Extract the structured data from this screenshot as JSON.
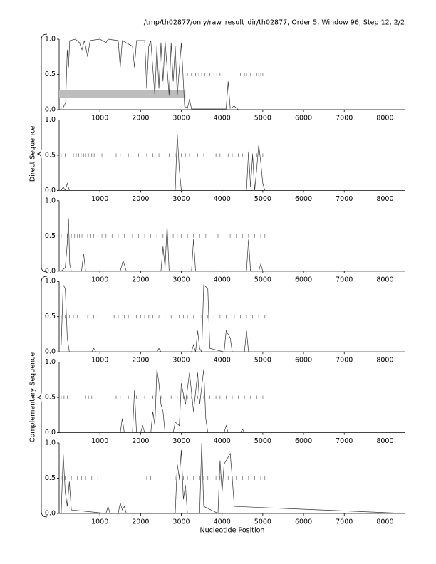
{
  "page": {
    "header": "/tmp/th02877/only/raw_result_dir/th02877, Order 5, Window 96, Step 12, 2/2",
    "direct_label": "Direct Sequence",
    "complementary_label": "Complementary Sequence",
    "xlabel": "Nucleotide Position"
  },
  "chart_data": [
    {
      "type": "line",
      "xlim": [
        0,
        8500
      ],
      "ylim": [
        0,
        1
      ],
      "xticks": [
        1000,
        2000,
        3000,
        4000,
        5000,
        6000,
        7000,
        8000
      ],
      "yticks": [
        {
          "value": 0,
          "label": "0.0"
        },
        {
          "value": 0.5,
          "label": "0.5"
        },
        {
          "value": 1,
          "label": "1.0"
        }
      ],
      "x": [
        50,
        100,
        160,
        200,
        230,
        260,
        400,
        500,
        560,
        620,
        700,
        760,
        1000,
        1150,
        1200,
        1450,
        1500,
        1550,
        1800,
        1850,
        1900,
        2100,
        2150,
        2200,
        2250,
        2350,
        2400,
        2450,
        2500,
        2550,
        2600,
        2700,
        2750,
        2800,
        2850,
        2900,
        3000,
        3080,
        3150,
        3200,
        3250,
        4100,
        4150,
        4200,
        4300,
        4400,
        8500
      ],
      "series": [
        {
          "color": "#333333",
          "values": [
            0.02,
            0.03,
            0.1,
            0.85,
            0.6,
            0.98,
            1,
            0.95,
            0.85,
            0.98,
            0.75,
            0.98,
            1,
            0.95,
            1,
            0.98,
            0.6,
            0.98,
            0.9,
            0.6,
            0.98,
            0.98,
            0.3,
            0.9,
            0.98,
            0.2,
            0.9,
            0.3,
            0.95,
            0.4,
            0.98,
            0.2,
            0.95,
            0.4,
            0.9,
            0.2,
            0.95,
            0.05,
            0.02,
            0.15,
            0.01,
            0.01,
            0.4,
            0.02,
            0.05,
            0,
            0
          ]
        }
      ],
      "orfs": [
        3150,
        3250,
        3350,
        3430,
        3500,
        3580,
        3700,
        3800,
        3870,
        3950,
        4050,
        4450,
        4550,
        4600,
        4700,
        4780,
        4850,
        4900,
        4950,
        5000
      ],
      "region": {
        "x": [
          0,
          3100
        ],
        "y": [
          0.17,
          0.28
        ]
      }
    },
    {
      "type": "line",
      "xlim": [
        0,
        8500
      ],
      "ylim": [
        0,
        1
      ],
      "xticks": [
        1000,
        2000,
        3000,
        4000,
        5000,
        6000,
        7000,
        8000
      ],
      "yticks": [
        {
          "value": 0,
          "label": "0.0"
        },
        {
          "value": 0.5,
          "label": "0.5"
        },
        {
          "value": 1,
          "label": "1.0"
        }
      ],
      "x": [
        50,
        100,
        150,
        200,
        250,
        2850,
        2900,
        2950,
        3000,
        4600,
        4650,
        4700,
        4750,
        4800,
        4850,
        4900,
        4950,
        5000,
        5050,
        8500
      ],
      "series": [
        {
          "color": "#333333",
          "values": [
            0,
            0.05,
            0,
            0.1,
            0,
            0,
            0.8,
            0.3,
            0,
            0,
            0.55,
            0.05,
            0.5,
            0,
            0.3,
            0.65,
            0.4,
            0.1,
            0,
            0
          ]
        }
      ],
      "orfs": [
        50,
        150,
        350,
        420,
        480,
        540,
        600,
        650,
        720,
        800,
        860,
        950,
        1050,
        1250,
        1400,
        1500,
        1700,
        1950,
        2150,
        2300,
        2450,
        2600,
        2700,
        2850,
        3000,
        3100,
        3200,
        3400,
        3550,
        3850,
        3950,
        4050,
        4150,
        4250,
        4400,
        4500,
        4650,
        4750,
        4850,
        5000
      ]
    },
    {
      "type": "line",
      "xlim": [
        0,
        8500
      ],
      "ylim": [
        0,
        1
      ],
      "xticks": [
        1000,
        2000,
        3000,
        4000,
        5000,
        6000,
        7000,
        8000
      ],
      "yticks": [
        {
          "value": 0,
          "label": "0.0"
        },
        {
          "value": 0.5,
          "label": "0.5"
        },
        {
          "value": 1,
          "label": "1.0"
        }
      ],
      "x": [
        50,
        150,
        200,
        230,
        260,
        300,
        550,
        600,
        650,
        1500,
        1570,
        1650,
        2500,
        2550,
        2600,
        2650,
        2700,
        3250,
        3300,
        3350,
        4600,
        4650,
        4700,
        4900,
        4950,
        5000,
        8500
      ],
      "series": [
        {
          "color": "#333333",
          "values": [
            0,
            0.05,
            0.4,
            0.75,
            0.1,
            0,
            0,
            0.25,
            0,
            0,
            0.15,
            0,
            0,
            0.35,
            0.05,
            0.65,
            0,
            0,
            0.45,
            0,
            0,
            0.45,
            0,
            0,
            0.1,
            0,
            0
          ]
        }
      ],
      "orfs": [
        50,
        200,
        300,
        380,
        450,
        500,
        560,
        640,
        700,
        780,
        850,
        950,
        1050,
        1150,
        1300,
        1450,
        1600,
        1800,
        1950,
        2100,
        2250,
        2400,
        2550,
        2650,
        2800,
        2900,
        3000,
        3150,
        3300,
        3450,
        3600,
        3750,
        3900,
        4050,
        4200,
        4350,
        4500,
        4650,
        4800,
        4950,
        5050
      ]
    },
    {
      "type": "line",
      "xlim": [
        0,
        8500
      ],
      "ylim": [
        0,
        1
      ],
      "xticks": [
        1000,
        2000,
        3000,
        4000,
        5000,
        6000,
        7000,
        8000
      ],
      "yticks": [
        {
          "value": 0,
          "label": "0.0"
        },
        {
          "value": 0.5,
          "label": "0.5"
        },
        {
          "value": 1,
          "label": "1.0"
        }
      ],
      "x": [
        50,
        100,
        150,
        200,
        250,
        800,
        850,
        900,
        2400,
        2450,
        2500,
        3250,
        3300,
        3350,
        3400,
        3450,
        3500,
        3550,
        3650,
        3700,
        4050,
        4100,
        4200,
        4250,
        4550,
        4600,
        4650,
        8500
      ],
      "series": [
        {
          "color": "#333333",
          "values": [
            0.1,
            0.95,
            0.9,
            0.2,
            0,
            0,
            0.05,
            0,
            0,
            0.05,
            0,
            0,
            0.1,
            0,
            0.3,
            0.05,
            0,
            0.95,
            0.9,
            0.05,
            0,
            0.3,
            0.2,
            0,
            0,
            0.3,
            0,
            0
          ]
        }
      ],
      "orfs": [
        50,
        150,
        250,
        350,
        450,
        700,
        850,
        950,
        1200,
        1350,
        1450,
        1600,
        1700,
        1900,
        2000,
        2100,
        2200,
        2300,
        2450,
        2600,
        2750,
        2950,
        3050,
        3150,
        3300,
        3500,
        3650,
        3800,
        3950,
        4100,
        4300,
        4450,
        4600,
        4750,
        4900,
        5050
      ]
    },
    {
      "type": "line",
      "xlim": [
        0,
        8500
      ],
      "ylim": [
        0,
        1
      ],
      "xticks": [
        1000,
        2000,
        3000,
        4000,
        5000,
        6000,
        7000,
        8000
      ],
      "yticks": [
        {
          "value": 0,
          "label": "0.0"
        },
        {
          "value": 0.5,
          "label": "0.5"
        },
        {
          "value": 1,
          "label": "1.0"
        }
      ],
      "x": [
        50,
        1500,
        1550,
        1600,
        1800,
        1850,
        1900,
        2000,
        2050,
        2100,
        2250,
        2300,
        2350,
        2400,
        2450,
        2500,
        2550,
        2600,
        2800,
        2850,
        2950,
        3000,
        3100,
        3200,
        3300,
        3400,
        3450,
        3550,
        3600,
        3650,
        4050,
        4100,
        4150,
        4450,
        4500,
        4550,
        8500
      ],
      "series": [
        {
          "color": "#333333",
          "values": [
            0,
            0,
            0.2,
            0,
            0,
            0.6,
            0,
            0,
            0.1,
            0,
            0,
            0.3,
            0.1,
            0.9,
            0.7,
            0.4,
            0.3,
            0,
            0,
            0.15,
            0.1,
            0.7,
            0.4,
            0.85,
            0.3,
            0.85,
            0.4,
            0.9,
            0.2,
            0,
            0,
            0.1,
            0,
            0,
            0.05,
            0,
            0
          ]
        }
      ],
      "orfs": [
        50,
        120,
        200,
        650,
        720,
        800,
        1250,
        1400,
        1500,
        1700,
        1900,
        2100,
        2300,
        2500,
        2650,
        2750,
        2900,
        3050,
        3150,
        3250,
        3400,
        3550,
        3700,
        3850,
        3950,
        4100,
        4250,
        4400,
        4550,
        4700,
        4850,
        5000
      ]
    },
    {
      "type": "line",
      "xlim": [
        0,
        8500
      ],
      "ylim": [
        0,
        1
      ],
      "xticks": [
        1000,
        2000,
        3000,
        4000,
        5000,
        6000,
        7000,
        8000
      ],
      "yticks": [
        {
          "value": 0,
          "label": "0.0"
        },
        {
          "value": 0.5,
          "label": "0.5"
        },
        {
          "value": 1,
          "label": "1.0"
        }
      ],
      "x": [
        50,
        100,
        150,
        200,
        250,
        300,
        1150,
        1200,
        1250,
        1450,
        1500,
        1550,
        1600,
        1650,
        2850,
        2900,
        2950,
        3000,
        3050,
        3100,
        3150,
        3450,
        3500,
        3550,
        3900,
        3950,
        4000,
        4050,
        4150,
        4200,
        4250,
        4300,
        8500
      ],
      "series": [
        {
          "color": "#333333",
          "values": [
            0,
            0.85,
            0.3,
            0.1,
            0.45,
            0.05,
            0,
            0.1,
            0,
            0,
            0.15,
            0.05,
            0.1,
            0,
            0,
            0.7,
            0.5,
            0.9,
            0.2,
            0.4,
            0,
            0,
            1,
            0.1,
            0,
            0.75,
            0.3,
            0.7,
            0.8,
            0.85,
            0.5,
            0.1,
            0
          ]
        }
      ],
      "orfs": [
        50,
        150,
        300,
        450,
        550,
        650,
        800,
        950,
        2150,
        2250,
        2850,
        2950,
        3050,
        3150,
        3300,
        3450,
        3550,
        3650,
        3750,
        3850,
        3950,
        4050,
        4150,
        4250,
        4350,
        4500,
        4650,
        4800,
        4950,
        5050
      ]
    }
  ]
}
